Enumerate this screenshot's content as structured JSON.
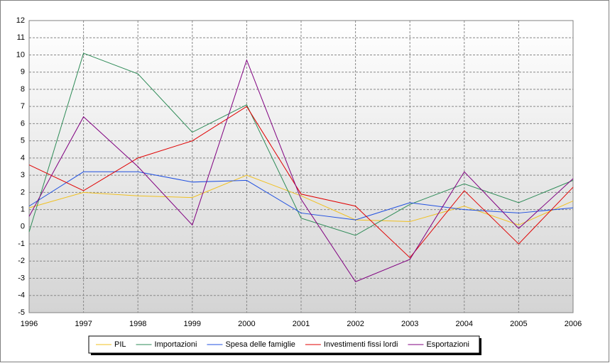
{
  "chart_data": {
    "type": "line",
    "categories": [
      "1996",
      "1997",
      "1998",
      "1999",
      "2000",
      "2001",
      "2002",
      "2003",
      "2004",
      "2005",
      "2006"
    ],
    "series": [
      {
        "name": "PIL",
        "color": "#f0c020",
        "values": [
          1.1,
          2.0,
          1.8,
          1.7,
          3.0,
          1.8,
          0.4,
          0.3,
          1.2,
          0.1,
          1.5
        ]
      },
      {
        "name": "Importazioni",
        "color": "#2e8b57",
        "values": [
          -0.3,
          10.1,
          8.9,
          5.5,
          7.1,
          0.5,
          -0.5,
          1.3,
          2.5,
          1.4,
          2.7
        ]
      },
      {
        "name": "Spesa delle famiglie",
        "color": "#2050e0",
        "values": [
          1.2,
          3.2,
          3.2,
          2.6,
          2.7,
          0.8,
          0.4,
          1.4,
          1.0,
          0.8,
          1.1
        ]
      },
      {
        "name": "Investimenti fissi lordi",
        "color": "#e00000",
        "values": [
          3.6,
          2.1,
          4.0,
          5.0,
          7.0,
          1.9,
          1.2,
          -1.8,
          2.1,
          -1.0,
          2.3
        ]
      },
      {
        "name": "Esportazioni",
        "color": "#800080",
        "values": [
          0.6,
          6.4,
          3.5,
          0.1,
          9.7,
          1.6,
          -3.2,
          -1.9,
          3.2,
          -0.1,
          2.8
        ]
      }
    ],
    "ylim": [
      -5,
      12
    ],
    "yticks": [
      -5,
      -4,
      -3,
      -2,
      -1,
      0,
      1,
      2,
      3,
      4,
      5,
      6,
      7,
      8,
      9,
      10,
      11,
      12
    ],
    "grid": true,
    "legend": "bottom"
  }
}
